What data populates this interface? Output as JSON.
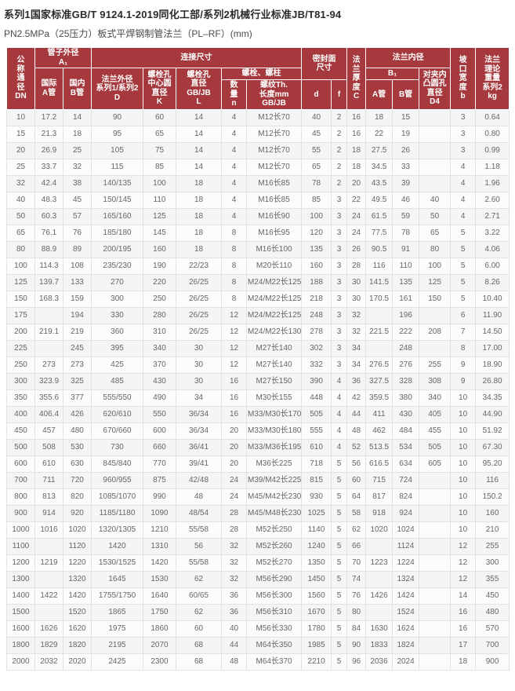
{
  "title": "系列1国家标准GB/T 9124.1-2019同化工部/系列2机械行业标准JB/T81-94",
  "subtitle": "PN2.5MPa（25压力）板式平焊钢制管法兰（PL–RF）(mm)",
  "colors": {
    "header_bg": "#a5393d",
    "body_text": "#666666",
    "border": "#e2e2e2"
  },
  "table": {
    "header": {
      "dn": "公\n称\n通\n径\nDN",
      "pipe_od": "管子外径\nA₁",
      "intl_a": "国际\nA管",
      "domestic_b": "国内\nB管",
      "connection": "连接尺寸",
      "flange_od": "法兰外径\n系列1/系列2\nD",
      "bolt_circle": "螺栓孔\n中心圆\n直径\nK",
      "bolt_hole": "螺栓孔\n直径\nGB/JB\nL",
      "bolts": "螺栓、螺柱",
      "qty": "数\n量\nn",
      "thread": "螺纹Th.\n长度mm\nGB/JB",
      "seal_face": "密封面\n尺寸",
      "d": "d",
      "f": "f",
      "thickness": "法\n兰\n厚\n度\nC",
      "flange_id": "法兰内径",
      "b1": "B₁",
      "a_pipe": "A管",
      "b_pipe": "B管",
      "d4": "对夹内\n凸圆孔\n直径\nD4",
      "groove": "坡\n口\n宽\n度\nb",
      "weight": "法兰\n理论\n重量\n系列2\nkg"
    },
    "rows": [
      [
        "10",
        "17.2",
        "14",
        "90",
        "60",
        "14",
        "4",
        "M12长70",
        "40",
        "2",
        "16",
        "18",
        "15",
        "",
        "3",
        "0.64"
      ],
      [
        "15",
        "21.3",
        "18",
        "95",
        "65",
        "14",
        "4",
        "M12长70",
        "45",
        "2",
        "16",
        "22",
        "19",
        "",
        "3",
        "0.80"
      ],
      [
        "20",
        "26.9",
        "25",
        "105",
        "75",
        "14",
        "4",
        "M12长70",
        "55",
        "2",
        "18",
        "27.5",
        "26",
        "",
        "3",
        "0.99"
      ],
      [
        "25",
        "33.7",
        "32",
        "115",
        "85",
        "14",
        "4",
        "M12长70",
        "65",
        "2",
        "18",
        "34.5",
        "33",
        "",
        "4",
        "1.18"
      ],
      [
        "32",
        "42.4",
        "38",
        "140/135",
        "100",
        "18",
        "4",
        "M16长85",
        "78",
        "2",
        "20",
        "43.5",
        "39",
        "",
        "4",
        "1.96"
      ],
      [
        "40",
        "48.3",
        "45",
        "150/145",
        "110",
        "18",
        "4",
        "M16长85",
        "85",
        "3",
        "22",
        "49.5",
        "46",
        "40",
        "4",
        "2.60"
      ],
      [
        "50",
        "60.3",
        "57",
        "165/160",
        "125",
        "18",
        "4",
        "M16长90",
        "100",
        "3",
        "24",
        "61.5",
        "59",
        "50",
        "4",
        "2.71"
      ],
      [
        "65",
        "76.1",
        "76",
        "185/180",
        "145",
        "18",
        "8",
        "M16长95",
        "120",
        "3",
        "24",
        "77.5",
        "78",
        "65",
        "5",
        "3.22"
      ],
      [
        "80",
        "88.9",
        "89",
        "200/195",
        "160",
        "18",
        "8",
        "M16长100",
        "135",
        "3",
        "26",
        "90.5",
        "91",
        "80",
        "5",
        "4.06"
      ],
      [
        "100",
        "114.3",
        "108",
        "235/230",
        "190",
        "22/23",
        "8",
        "M20长110",
        "160",
        "3",
        "28",
        "116",
        "110",
        "100",
        "5",
        "6.00"
      ],
      [
        "125",
        "139.7",
        "133",
        "270",
        "220",
        "26/25",
        "8",
        "M24/M22长125",
        "188",
        "3",
        "30",
        "141.5",
        "135",
        "125",
        "5",
        "8.26"
      ],
      [
        "150",
        "168.3",
        "159",
        "300",
        "250",
        "26/25",
        "8",
        "M24/M22长125",
        "218",
        "3",
        "30",
        "170.5",
        "161",
        "150",
        "5",
        "10.40"
      ],
      [
        "175",
        "",
        "194",
        "330",
        "280",
        "26/25",
        "12",
        "M24/M22长125",
        "248",
        "3",
        "32",
        "",
        "196",
        "",
        "6",
        "11.90"
      ],
      [
        "200",
        "219.1",
        "219",
        "360",
        "310",
        "26/25",
        "12",
        "M24/M22长130",
        "278",
        "3",
        "32",
        "221.5",
        "222",
        "208",
        "7",
        "14.50"
      ],
      [
        "225",
        "",
        "245",
        "395",
        "340",
        "30",
        "12",
        "M27长140",
        "302",
        "3",
        "34",
        "",
        "248",
        "",
        "8",
        "17.00"
      ],
      [
        "250",
        "273",
        "273",
        "425",
        "370",
        "30",
        "12",
        "M27长140",
        "332",
        "3",
        "34",
        "276.5",
        "276",
        "255",
        "9",
        "18.90"
      ],
      [
        "300",
        "323.9",
        "325",
        "485",
        "430",
        "30",
        "16",
        "M27长150",
        "390",
        "4",
        "36",
        "327.5",
        "328",
        "308",
        "9",
        "26.80"
      ],
      [
        "350",
        "355.6",
        "377",
        "555/550",
        "490",
        "34",
        "16",
        "M30长155",
        "448",
        "4",
        "42",
        "359.5",
        "380",
        "340",
        "10",
        "34.35"
      ],
      [
        "400",
        "406.4",
        "426",
        "620/610",
        "550",
        "36/34",
        "16",
        "M33/M30长170",
        "505",
        "4",
        "44",
        "411",
        "430",
        "405",
        "10",
        "44.90"
      ],
      [
        "450",
        "457",
        "480",
        "670/660",
        "600",
        "36/34",
        "20",
        "M33/M30长180",
        "555",
        "4",
        "48",
        "462",
        "484",
        "455",
        "10",
        "51.92"
      ],
      [
        "500",
        "508",
        "530",
        "730",
        "660",
        "36/41",
        "20",
        "M33/M36长195",
        "610",
        "4",
        "52",
        "513.5",
        "534",
        "505",
        "10",
        "67.30"
      ],
      [
        "600",
        "610",
        "630",
        "845/840",
        "770",
        "39/41",
        "20",
        "M36长225",
        "718",
        "5",
        "56",
        "616.5",
        "634",
        "605",
        "10",
        "95.20"
      ],
      [
        "700",
        "711",
        "720",
        "960/955",
        "875",
        "42/48",
        "24",
        "M39/M42长225",
        "815",
        "5",
        "60",
        "715",
        "724",
        "",
        "10",
        "116"
      ],
      [
        "800",
        "813",
        "820",
        "1085/1070",
        "990",
        "48",
        "24",
        "M45/M42长230",
        "930",
        "5",
        "64",
        "817",
        "824",
        "",
        "10",
        "150.2"
      ],
      [
        "900",
        "914",
        "920",
        "1185/1180",
        "1090",
        "48/54",
        "28",
        "M45/M48长230",
        "1025",
        "5",
        "58",
        "918",
        "924",
        "",
        "10",
        "160"
      ],
      [
        "1000",
        "1016",
        "1020",
        "1320/1305",
        "1210",
        "55/58",
        "28",
        "M52长250",
        "1140",
        "5",
        "62",
        "1020",
        "1024",
        "",
        "10",
        "210"
      ],
      [
        "1100",
        "",
        "1120",
        "1420",
        "1310",
        "56",
        "32",
        "M52长260",
        "1240",
        "5",
        "66",
        "",
        "1124",
        "",
        "12",
        "255"
      ],
      [
        "1200",
        "1219",
        "1220",
        "1530/1525",
        "1420",
        "55/58",
        "32",
        "M52长270",
        "1350",
        "5",
        "70",
        "1223",
        "1224",
        "",
        "12",
        "300"
      ],
      [
        "1300",
        "",
        "1320",
        "1645",
        "1530",
        "62",
        "32",
        "M56长290",
        "1450",
        "5",
        "74",
        "",
        "1324",
        "",
        "12",
        "355"
      ],
      [
        "1400",
        "1422",
        "1420",
        "1755/1750",
        "1640",
        "60/65",
        "36",
        "M56长300",
        "1560",
        "5",
        "76",
        "1426",
        "1424",
        "",
        "14",
        "450"
      ],
      [
        "1500",
        "",
        "1520",
        "1865",
        "1750",
        "62",
        "36",
        "M56长310",
        "1670",
        "5",
        "80",
        "",
        "1524",
        "",
        "16",
        "480"
      ],
      [
        "1600",
        "1626",
        "1620",
        "1975",
        "1860",
        "60",
        "40",
        "M56长330",
        "1780",
        "5",
        "84",
        "1630",
        "1624",
        "",
        "16",
        "570"
      ],
      [
        "1800",
        "1829",
        "1820",
        "2195",
        "2070",
        "68",
        "44",
        "M64长350",
        "1985",
        "5",
        "90",
        "1833",
        "1824",
        "",
        "17",
        "700"
      ],
      [
        "2000",
        "2032",
        "2020",
        "2425",
        "2300",
        "68",
        "48",
        "M64长370",
        "2210",
        "5",
        "96",
        "2036",
        "2024",
        "",
        "18",
        "900"
      ]
    ]
  }
}
